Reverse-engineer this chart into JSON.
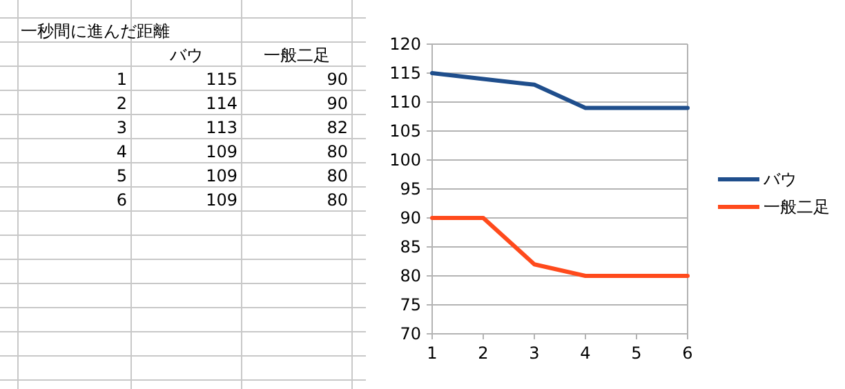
{
  "chart_data": [
    {
      "type": "heatmap",
      "title": "一秒間に進んだ距離",
      "categories": [
        "バウ",
        "一般二足"
      ],
      "y_categories": [
        "1",
        "2",
        "3",
        "4",
        "5",
        "6"
      ],
      "cells": [
        [
          115,
          90
        ],
        [
          114,
          90
        ],
        [
          113,
          82
        ],
        [
          109,
          80
        ],
        [
          109,
          80
        ],
        [
          109,
          80
        ]
      ],
      "data_labels": true
    },
    {
      "type": "line",
      "x": [
        1,
        2,
        3,
        4,
        5,
        6
      ],
      "series": [
        {
          "name": "バウ",
          "color": "#1f4e8c",
          "values": [
            115,
            114,
            113,
            109,
            109,
            109
          ]
        },
        {
          "name": "一般二足",
          "color": "#ff4a1c",
          "values": [
            90,
            90,
            82,
            80,
            80,
            80
          ]
        }
      ],
      "xlim": [
        1,
        6
      ],
      "xticks": [
        1,
        2,
        3,
        4,
        5,
        6
      ],
      "ylim": [
        70,
        120
      ],
      "yticks": [
        70,
        75,
        80,
        85,
        90,
        95,
        100,
        105,
        110,
        115,
        120
      ],
      "grid": "y",
      "legend": "right",
      "marker": "none",
      "line_style": "solid"
    }
  ]
}
